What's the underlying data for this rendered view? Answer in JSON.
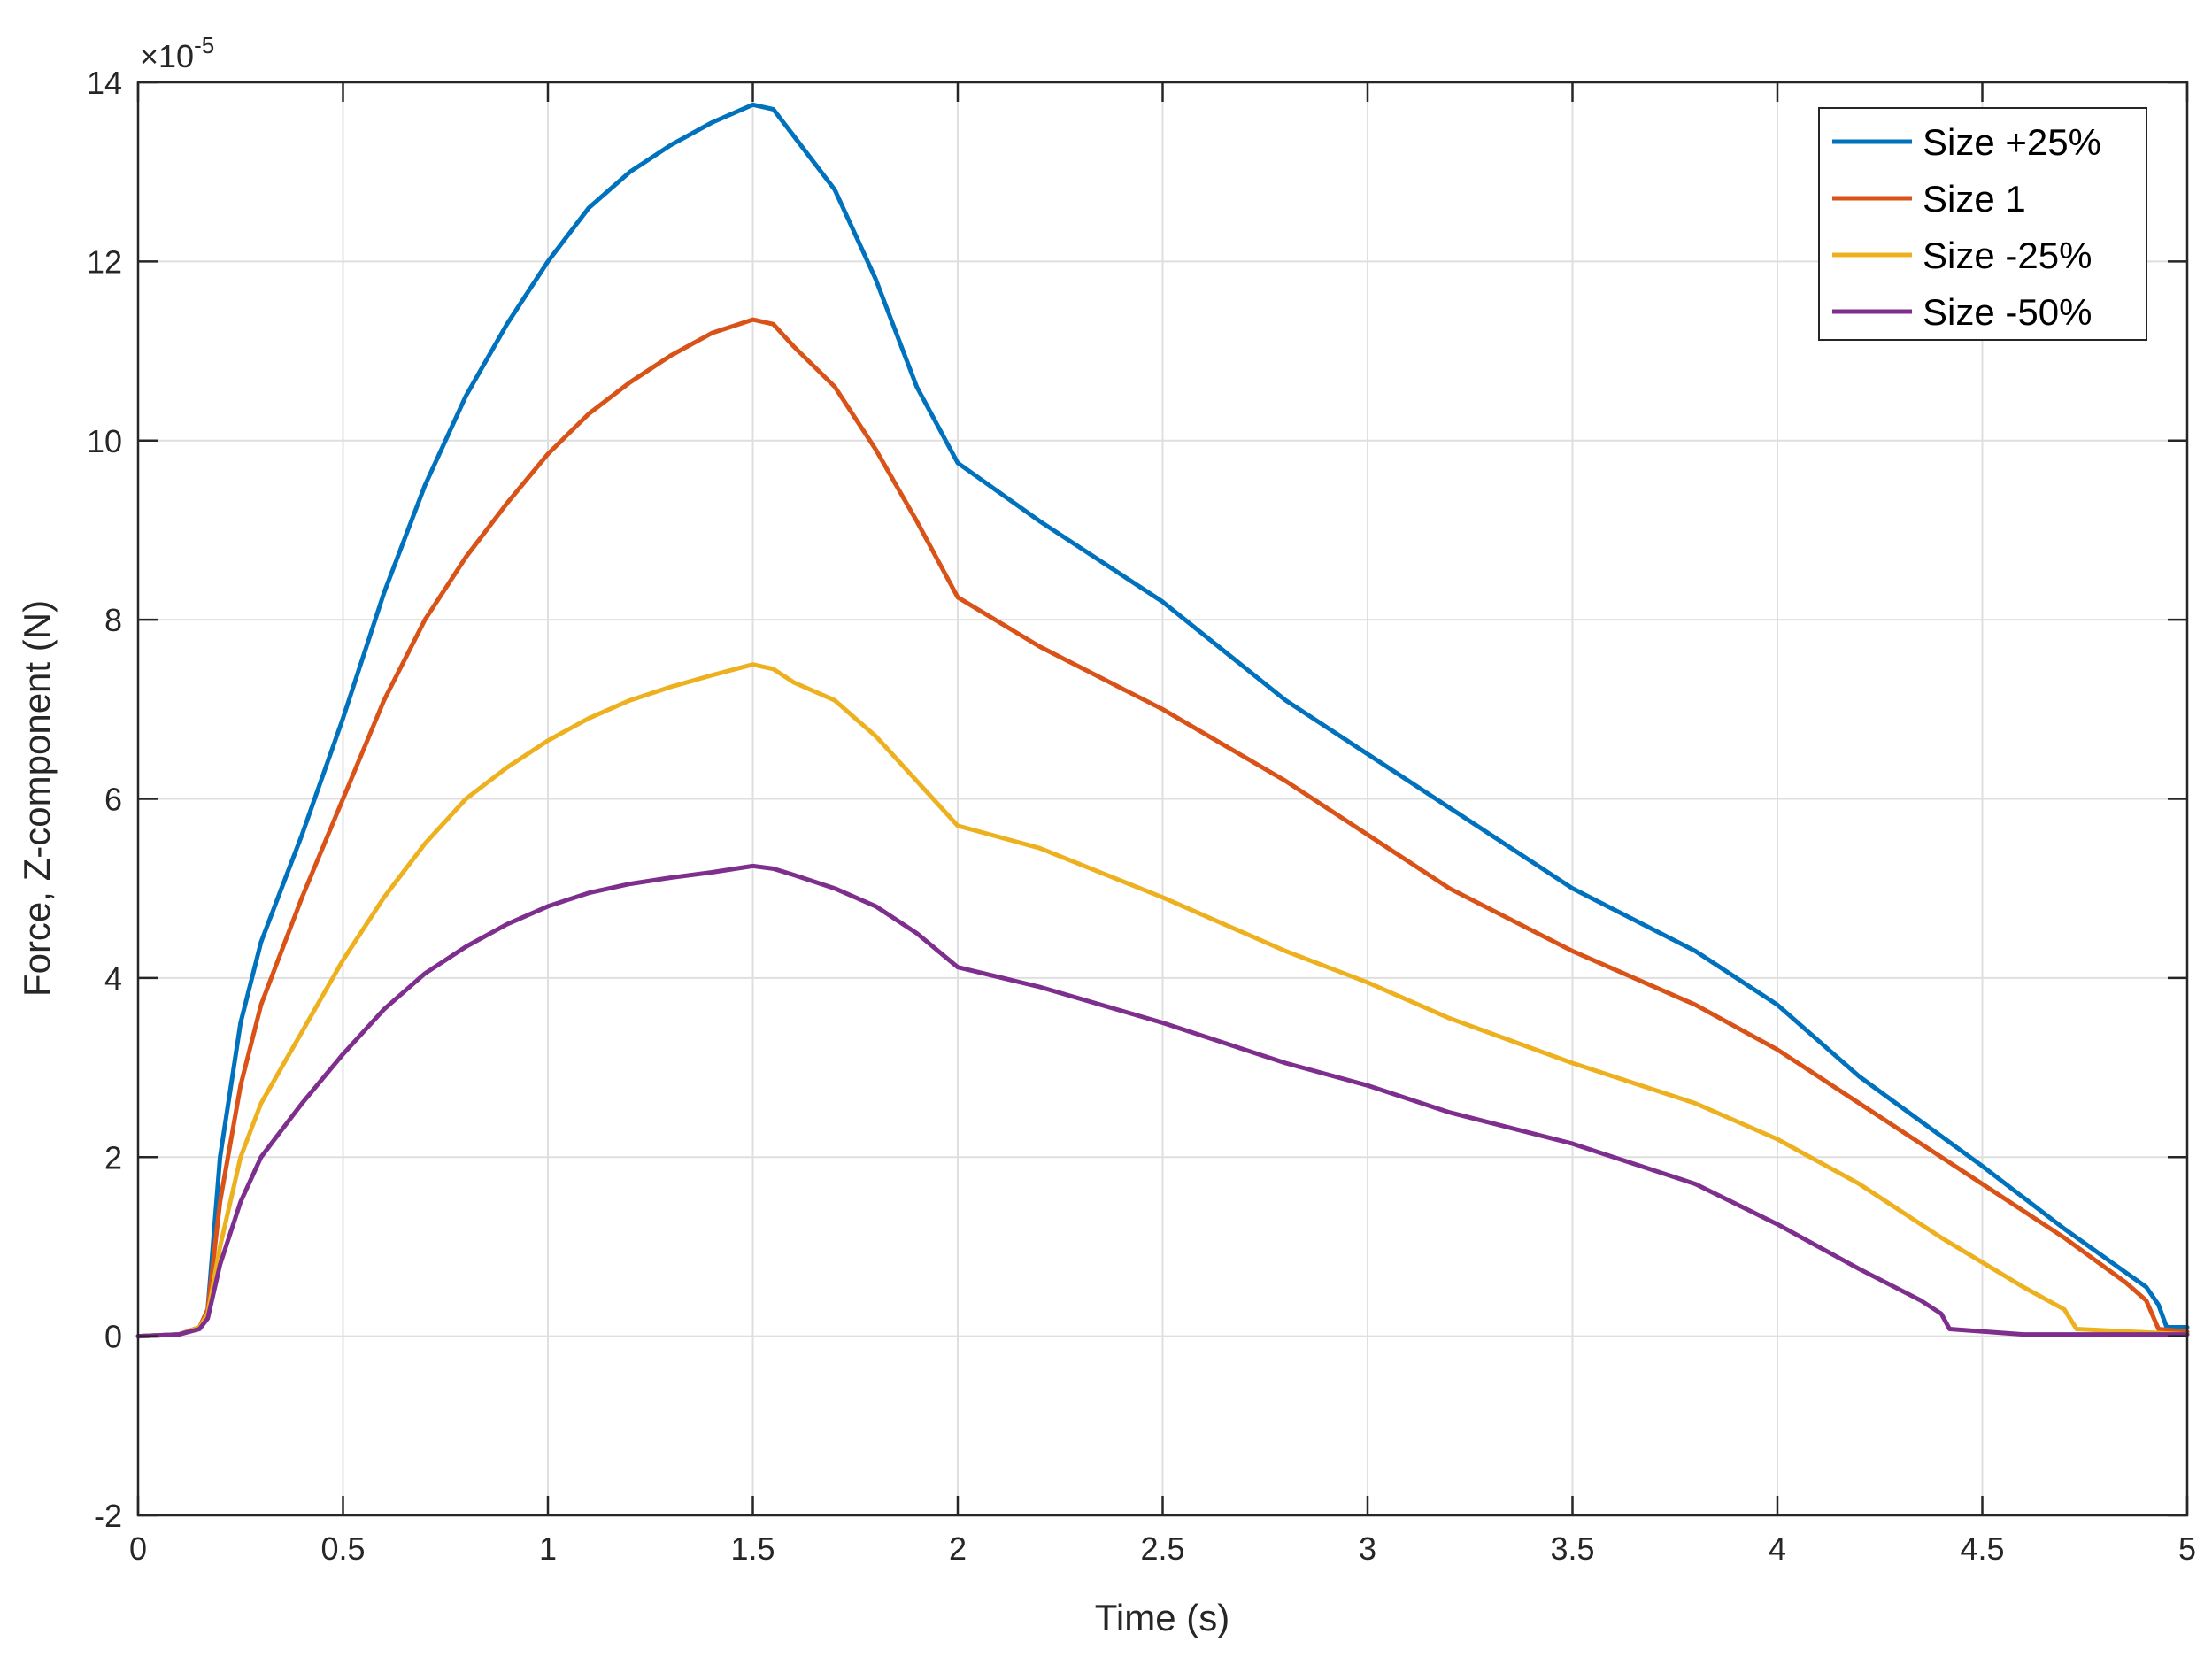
{
  "chart_data": {
    "type": "line",
    "title": "",
    "xlabel": "Time (s)",
    "ylabel": "Force, Z-component (N)",
    "exponent_label": "×10",
    "exponent_power": "-5",
    "xlim": [
      0,
      5
    ],
    "ylim": [
      -2,
      14
    ],
    "xticks": [
      0,
      0.5,
      1,
      1.5,
      2,
      2.5,
      3,
      3.5,
      4,
      4.5,
      5
    ],
    "xtick_labels": [
      "0",
      "0.5",
      "1",
      "1.5",
      "2",
      "2.5",
      "3",
      "3.5",
      "4",
      "4.5",
      "5"
    ],
    "yticks": [
      -2,
      0,
      2,
      4,
      6,
      8,
      10,
      12,
      14
    ],
    "ytick_labels": [
      "-2",
      "0",
      "2",
      "4",
      "6",
      "8",
      "10",
      "12",
      "14"
    ],
    "grid": true,
    "legend_position": "top-right",
    "series": [
      {
        "name": "Size +25%",
        "color": "#0072BD",
        "points": [
          [
            0,
            0
          ],
          [
            0.1,
            0.02
          ],
          [
            0.15,
            0.1
          ],
          [
            0.17,
            0.3
          ],
          [
            0.2,
            2
          ],
          [
            0.25,
            3.5
          ],
          [
            0.3,
            4.4
          ],
          [
            0.35,
            5
          ],
          [
            0.4,
            5.6
          ],
          [
            0.5,
            6.9
          ],
          [
            0.6,
            8.3
          ],
          [
            0.7,
            9.5
          ],
          [
            0.8,
            10.5
          ],
          [
            0.9,
            11.3
          ],
          [
            1.0,
            12.0
          ],
          [
            1.1,
            12.6
          ],
          [
            1.2,
            13.0
          ],
          [
            1.3,
            13.3
          ],
          [
            1.4,
            13.55
          ],
          [
            1.5,
            13.75
          ],
          [
            1.55,
            13.7
          ],
          [
            1.6,
            13.4
          ],
          [
            1.7,
            12.8
          ],
          [
            1.8,
            11.8
          ],
          [
            1.9,
            10.6
          ],
          [
            2.0,
            9.75
          ],
          [
            2.2,
            9.1
          ],
          [
            2.5,
            8.2
          ],
          [
            2.8,
            7.1
          ],
          [
            3.0,
            6.5
          ],
          [
            3.2,
            5.9
          ],
          [
            3.5,
            5.0
          ],
          [
            3.8,
            4.3
          ],
          [
            4.0,
            3.7
          ],
          [
            4.2,
            2.9
          ],
          [
            4.5,
            1.9
          ],
          [
            4.7,
            1.2
          ],
          [
            4.9,
            0.55
          ],
          [
            4.93,
            0.35
          ],
          [
            4.95,
            0.1
          ],
          [
            5.0,
            0.1
          ]
        ]
      },
      {
        "name": "Size 1",
        "color": "#D95319",
        "points": [
          [
            0,
            0
          ],
          [
            0.1,
            0.02
          ],
          [
            0.15,
            0.1
          ],
          [
            0.17,
            0.3
          ],
          [
            0.2,
            1.5
          ],
          [
            0.25,
            2.8
          ],
          [
            0.3,
            3.7
          ],
          [
            0.35,
            4.3
          ],
          [
            0.4,
            4.9
          ],
          [
            0.5,
            6.0
          ],
          [
            0.6,
            7.1
          ],
          [
            0.7,
            8.0
          ],
          [
            0.8,
            8.7
          ],
          [
            0.9,
            9.3
          ],
          [
            1.0,
            9.85
          ],
          [
            1.1,
            10.3
          ],
          [
            1.2,
            10.65
          ],
          [
            1.3,
            10.95
          ],
          [
            1.4,
            11.2
          ],
          [
            1.5,
            11.35
          ],
          [
            1.55,
            11.3
          ],
          [
            1.6,
            11.05
          ],
          [
            1.7,
            10.6
          ],
          [
            1.8,
            9.9
          ],
          [
            1.9,
            9.1
          ],
          [
            2.0,
            8.25
          ],
          [
            2.2,
            7.7
          ],
          [
            2.5,
            7.0
          ],
          [
            2.8,
            6.2
          ],
          [
            3.0,
            5.6
          ],
          [
            3.2,
            5.0
          ],
          [
            3.5,
            4.3
          ],
          [
            3.8,
            3.7
          ],
          [
            4.0,
            3.2
          ],
          [
            4.2,
            2.6
          ],
          [
            4.5,
            1.7
          ],
          [
            4.7,
            1.1
          ],
          [
            4.85,
            0.6
          ],
          [
            4.9,
            0.4
          ],
          [
            4.93,
            0.08
          ],
          [
            5.0,
            0.05
          ]
        ]
      },
      {
        "name": "Size -25%",
        "color": "#EDB120",
        "points": [
          [
            0,
            0
          ],
          [
            0.1,
            0.02
          ],
          [
            0.15,
            0.1
          ],
          [
            0.17,
            0.25
          ],
          [
            0.2,
            1.0
          ],
          [
            0.25,
            2.0
          ],
          [
            0.3,
            2.6
          ],
          [
            0.35,
            3.0
          ],
          [
            0.4,
            3.4
          ],
          [
            0.5,
            4.2
          ],
          [
            0.6,
            4.9
          ],
          [
            0.7,
            5.5
          ],
          [
            0.8,
            6.0
          ],
          [
            0.9,
            6.35
          ],
          [
            1.0,
            6.65
          ],
          [
            1.1,
            6.9
          ],
          [
            1.2,
            7.1
          ],
          [
            1.3,
            7.25
          ],
          [
            1.4,
            7.38
          ],
          [
            1.5,
            7.5
          ],
          [
            1.55,
            7.45
          ],
          [
            1.6,
            7.3
          ],
          [
            1.7,
            7.1
          ],
          [
            1.8,
            6.7
          ],
          [
            1.9,
            6.2
          ],
          [
            2.0,
            5.7
          ],
          [
            2.2,
            5.45
          ],
          [
            2.5,
            4.9
          ],
          [
            2.8,
            4.3
          ],
          [
            3.0,
            3.95
          ],
          [
            3.2,
            3.55
          ],
          [
            3.5,
            3.05
          ],
          [
            3.8,
            2.6
          ],
          [
            4.0,
            2.2
          ],
          [
            4.2,
            1.7
          ],
          [
            4.4,
            1.1
          ],
          [
            4.6,
            0.55
          ],
          [
            4.7,
            0.3
          ],
          [
            4.73,
            0.08
          ],
          [
            5.0,
            0.02
          ]
        ]
      },
      {
        "name": "Size -50%",
        "color": "#7E2F8E",
        "points": [
          [
            0,
            0
          ],
          [
            0.1,
            0.02
          ],
          [
            0.15,
            0.08
          ],
          [
            0.17,
            0.2
          ],
          [
            0.2,
            0.8
          ],
          [
            0.25,
            1.5
          ],
          [
            0.3,
            2.0
          ],
          [
            0.35,
            2.3
          ],
          [
            0.4,
            2.6
          ],
          [
            0.5,
            3.15
          ],
          [
            0.6,
            3.65
          ],
          [
            0.7,
            4.05
          ],
          [
            0.8,
            4.35
          ],
          [
            0.9,
            4.6
          ],
          [
            1.0,
            4.8
          ],
          [
            1.1,
            4.95
          ],
          [
            1.2,
            5.05
          ],
          [
            1.3,
            5.12
          ],
          [
            1.4,
            5.18
          ],
          [
            1.5,
            5.25
          ],
          [
            1.55,
            5.22
          ],
          [
            1.6,
            5.15
          ],
          [
            1.7,
            5.0
          ],
          [
            1.8,
            4.8
          ],
          [
            1.9,
            4.5
          ],
          [
            2.0,
            4.12
          ],
          [
            2.2,
            3.9
          ],
          [
            2.5,
            3.5
          ],
          [
            2.8,
            3.05
          ],
          [
            3.0,
            2.8
          ],
          [
            3.2,
            2.5
          ],
          [
            3.5,
            2.15
          ],
          [
            3.8,
            1.7
          ],
          [
            4.0,
            1.25
          ],
          [
            4.2,
            0.75
          ],
          [
            4.35,
            0.4
          ],
          [
            4.4,
            0.25
          ],
          [
            4.42,
            0.08
          ],
          [
            4.6,
            0.02
          ],
          [
            5.0,
            0.02
          ]
        ]
      }
    ]
  }
}
